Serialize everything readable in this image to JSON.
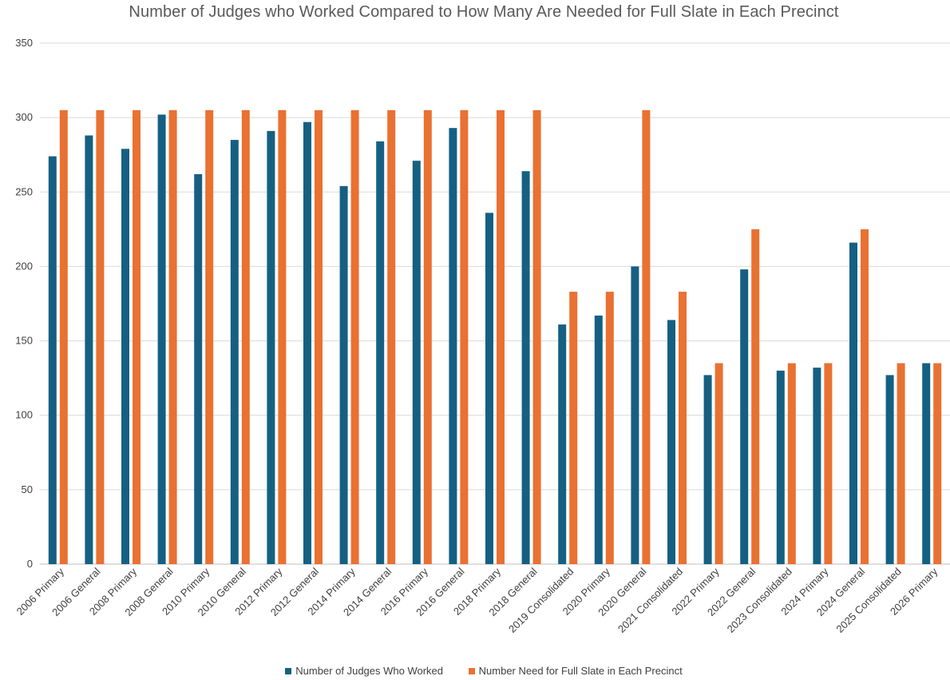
{
  "chart_data": {
    "type": "bar",
    "title": "Number of Judges who Worked Compared to How Many Are Needed for Full Slate in Each Precinct",
    "xlabel": "",
    "ylabel": "",
    "ylim": [
      0,
      350
    ],
    "yticks": [
      0,
      50,
      100,
      150,
      200,
      250,
      300,
      350
    ],
    "grid": true,
    "legend_position": "bottom",
    "categories": [
      "2006 Primary",
      "2006 General",
      "2008 Primary",
      "2008 General",
      "2010 Primary",
      "2010 General",
      "2012 Primary",
      "2012 General",
      "2014 Primary",
      "2014 General",
      "2016 Primary",
      "2016 General",
      "2018 Primary",
      "2018 General",
      "2019 Consolidated",
      "2020 Primary",
      "2020 General",
      "2021 Consolidated",
      "2022 Primary",
      "2022 General",
      "2023 Consolidated",
      "2024 Primary",
      "2024 General",
      "2025 Consolidated",
      "2026 Primary"
    ],
    "series": [
      {
        "name": "Number of Judges Who Worked",
        "color": "#156082",
        "values": [
          274,
          288,
          279,
          302,
          262,
          285,
          291,
          297,
          254,
          284,
          271,
          293,
          236,
          264,
          161,
          167,
          200,
          164,
          127,
          198,
          130,
          132,
          216,
          127,
          135
        ]
      },
      {
        "name": "Number Need for Full Slate in Each Precinct",
        "color": "#E97132",
        "values": [
          305,
          305,
          305,
          305,
          305,
          305,
          305,
          305,
          305,
          305,
          305,
          305,
          305,
          305,
          183,
          183,
          305,
          183,
          135,
          225,
          135,
          135,
          225,
          135,
          135
        ]
      }
    ]
  }
}
